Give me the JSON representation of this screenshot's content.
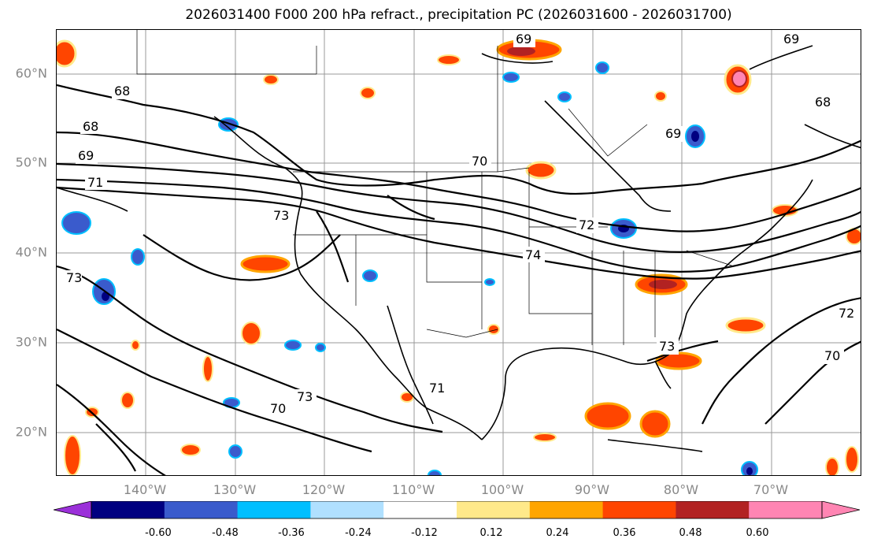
{
  "title": "2026031400 F000 200 hPa refract., precipitation PC (2026031600 - 2026031700)",
  "axes": {
    "latitude_labels": [
      "60°N",
      "50°N",
      "40°N",
      "30°N",
      "20°N"
    ],
    "latitude_values": [
      60,
      50,
      40,
      30,
      20
    ],
    "longitude_labels": [
      "140°W",
      "130°W",
      "120°W",
      "110°W",
      "100°W",
      "90°W",
      "80°W",
      "70°W"
    ],
    "longitude_values": [
      -140,
      -130,
      -120,
      -110,
      -100,
      -90,
      -80,
      -70
    ],
    "lat_range": [
      15,
      65
    ],
    "lon_range": [
      -150,
      -60
    ],
    "grid": true
  },
  "contours": {
    "color": "#000000",
    "labels": [
      "69",
      "69",
      "68",
      "68",
      "69",
      "71",
      "73",
      "70",
      "72",
      "74",
      "72",
      "73",
      "70",
      "71",
      "70",
      "73",
      "73",
      "68",
      "69"
    ]
  },
  "colorbar": {
    "ticks": [
      "-0.60",
      "-0.48",
      "-0.36",
      "-0.24",
      "-0.12",
      "0.12",
      "0.24",
      "0.36",
      "0.48",
      "0.60"
    ],
    "colors": [
      "#9b30d9",
      "#000080",
      "#3a5bcc",
      "#00bfff",
      "#b0e0ff",
      "#ffffff",
      "#ffe98a",
      "#ffa500",
      "#ff4500",
      "#b22222",
      "#ff85b3",
      "#ff85b3"
    ],
    "extend": "both"
  }
}
